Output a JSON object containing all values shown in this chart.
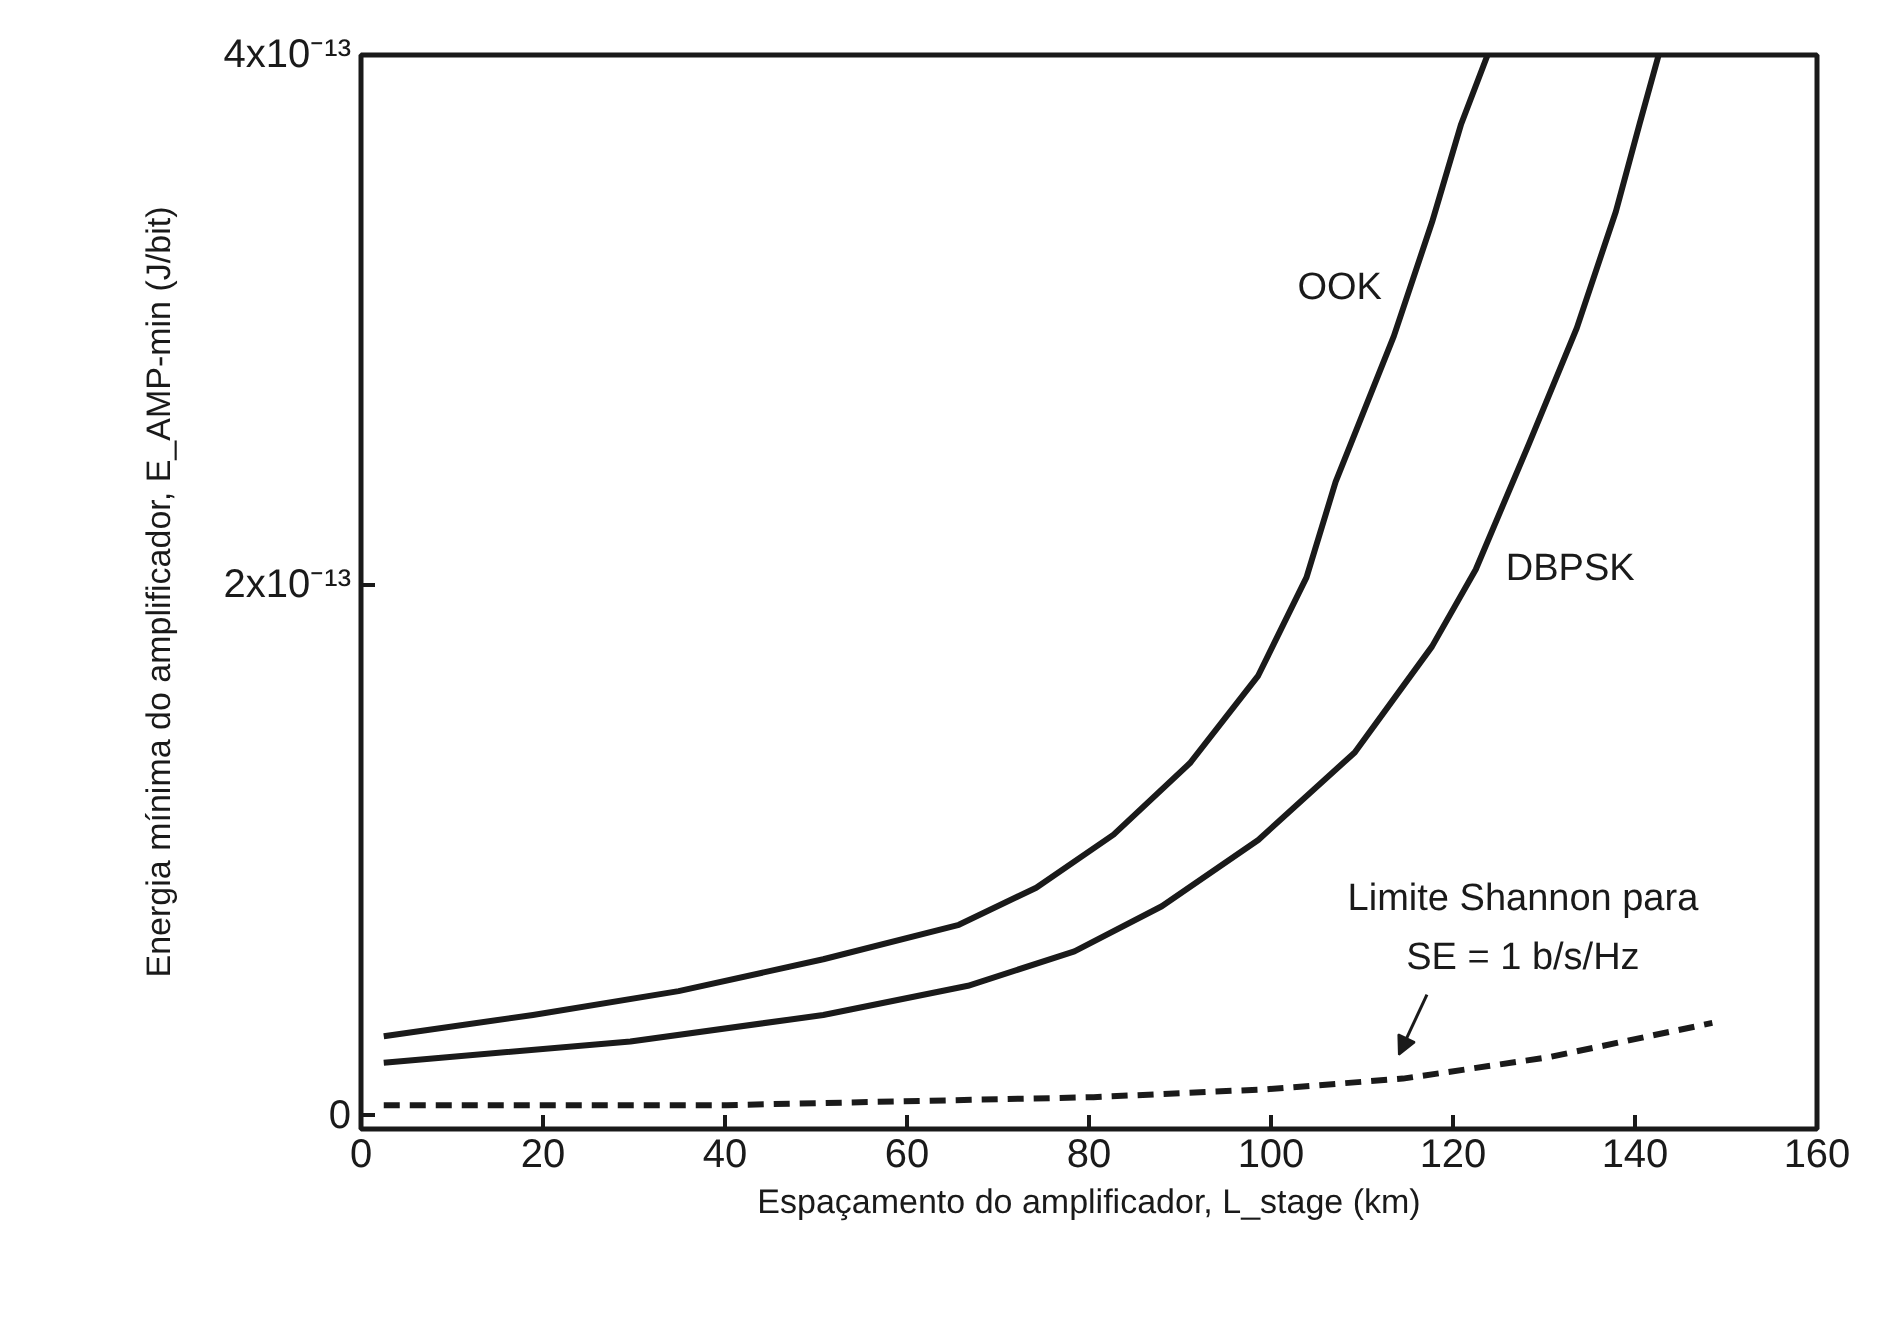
{
  "chart_data": {
    "type": "line",
    "xlabel": "Espaçamento do amplificador, L_stage (km)",
    "ylabel": "Energia mínima do amplificador, E_AMP-min (J/bit)",
    "xlim": [
      0,
      160
    ],
    "xticks": [
      0,
      20,
      40,
      60,
      80,
      100,
      120,
      140,
      160
    ],
    "ylim": [
      -5e-15,
      4e-13
    ],
    "yticks": [
      0,
      {
        "value": 2e-13,
        "label": "2x10⁻¹³"
      },
      {
        "value": 4e-13,
        "label": "4x10⁻¹³"
      }
    ],
    "grid": false,
    "marker": "none",
    "series": [
      {
        "name": "OOK",
        "color": "#1a1a1a",
        "line_style": "solid",
        "x": [
          2.5,
          18.9,
          34.9,
          50.8,
          65.7,
          74.2,
          82.7,
          91.1,
          98.6,
          103.9,
          107.1,
          113.5,
          117.7,
          120.9,
          123.8
        ],
        "values": [
          3e-14,
          3.8e-14,
          4.7e-14,
          5.9e-14,
          7.2e-14,
          8.6e-14,
          1.06e-13,
          1.33e-13,
          1.66e-13,
          2.03e-13,
          2.39e-13,
          2.94e-13,
          3.37e-13,
          3.74e-13,
          4e-13
        ]
      },
      {
        "name": "DBPSK",
        "color": "#1a1a1a",
        "line_style": "solid",
        "x": [
          2.5,
          29.6,
          50.8,
          66.7,
          78.4,
          88.0,
          98.6,
          109.2,
          117.7,
          122.5,
          128.3,
          133.6,
          137.9,
          140.5,
          142.6
        ],
        "values": [
          2e-14,
          2.8e-14,
          3.8e-14,
          4.9e-14,
          6.2e-14,
          7.9e-14,
          1.04e-13,
          1.37e-13,
          1.77e-13,
          2.06e-13,
          2.53e-13,
          2.97e-13,
          3.41e-13,
          3.74e-13,
          4e-13
        ]
      },
      {
        "name": "Limite Shannon para\nSE = 1 b/s/Hz",
        "color": "#1a1a1a",
        "line_style": "dashed",
        "x": [
          2.5,
          40.2,
          80.5,
          99.6,
          114.5,
          130.4,
          148.5
        ],
        "values": [
          4e-15,
          4e-15,
          7e-15,
          1e-14,
          1.4e-14,
          2.2e-14,
          3.5e-14
        ]
      }
    ]
  }
}
